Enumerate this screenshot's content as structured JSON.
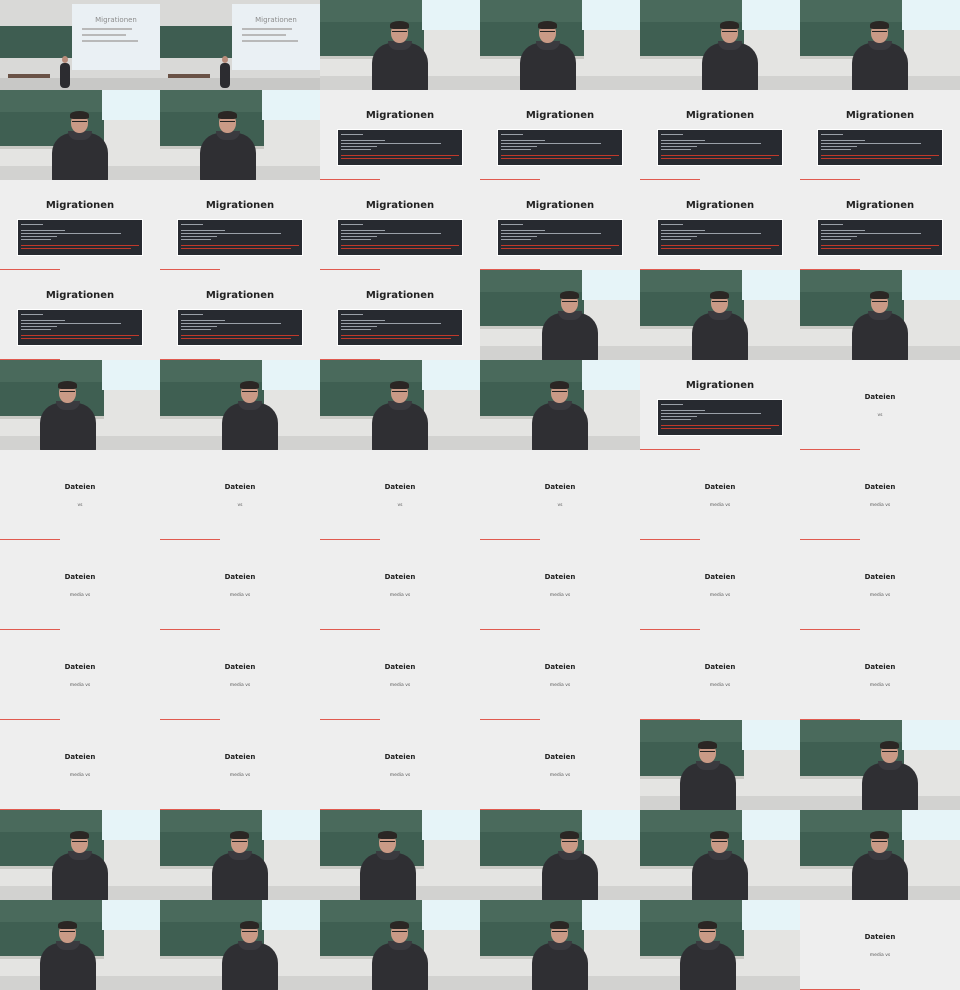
{
  "frames": [
    {
      "kind": "hall"
    },
    {
      "kind": "hall"
    },
    {
      "kind": "room"
    },
    {
      "kind": "room"
    },
    {
      "kind": "room"
    },
    {
      "kind": "room"
    },
    {
      "kind": "room"
    },
    {
      "kind": "room"
    },
    {
      "kind": "migrationen"
    },
    {
      "kind": "migrationen"
    },
    {
      "kind": "migrationen"
    },
    {
      "kind": "migrationen"
    },
    {
      "kind": "migrationen"
    },
    {
      "kind": "migrationen"
    },
    {
      "kind": "migrationen"
    },
    {
      "kind": "migrationen"
    },
    {
      "kind": "migrationen"
    },
    {
      "kind": "migrationen"
    },
    {
      "kind": "migrationen"
    },
    {
      "kind": "migrationen"
    },
    {
      "kind": "migrationen"
    },
    {
      "kind": "room"
    },
    {
      "kind": "room"
    },
    {
      "kind": "room"
    },
    {
      "kind": "room"
    },
    {
      "kind": "room"
    },
    {
      "kind": "room"
    },
    {
      "kind": "room"
    },
    {
      "kind": "migrationen"
    },
    {
      "kind": "dateien"
    },
    {
      "kind": "dateien"
    },
    {
      "kind": "dateien"
    },
    {
      "kind": "dateien"
    },
    {
      "kind": "dateien"
    },
    {
      "kind": "dateien"
    },
    {
      "kind": "dateien"
    },
    {
      "kind": "dateien"
    },
    {
      "kind": "dateien"
    },
    {
      "kind": "dateien"
    },
    {
      "kind": "dateien"
    },
    {
      "kind": "dateien"
    },
    {
      "kind": "dateien"
    },
    {
      "kind": "dateien"
    },
    {
      "kind": "dateien"
    },
    {
      "kind": "dateien"
    },
    {
      "kind": "dateien"
    },
    {
      "kind": "dateien"
    },
    {
      "kind": "dateien"
    },
    {
      "kind": "dateien"
    },
    {
      "kind": "dateien"
    },
    {
      "kind": "dateien"
    },
    {
      "kind": "dateien"
    },
    {
      "kind": "room"
    },
    {
      "kind": "room"
    },
    {
      "kind": "room"
    },
    {
      "kind": "room"
    },
    {
      "kind": "room"
    },
    {
      "kind": "room"
    },
    {
      "kind": "room"
    },
    {
      "kind": "room"
    },
    {
      "kind": "room"
    },
    {
      "kind": "room"
    },
    {
      "kind": "room"
    },
    {
      "kind": "room"
    },
    {
      "kind": "room"
    },
    {
      "kind": "dateien"
    }
  ],
  "dateien_subtitles": [
    "vs",
    "vs",
    "vs",
    "vs",
    "vs",
    "media vs",
    "media vs",
    "media vs",
    "media vs",
    "media vs",
    "media vs",
    "media vs",
    "media vs",
    "media vs",
    "media vs",
    "media vs",
    "media vs",
    "media vs",
    "media vs",
    "media vs",
    "media vs",
    "media vs",
    "media vs",
    "media vs"
  ],
  "slides": {
    "migrationen_title": "Migrationen",
    "dateien_title": "Dateien",
    "hall_projection_title": "Migrationen"
  },
  "colors": {
    "board": "#3f5f52",
    "slide_bg": "#eeeeee",
    "code_bg": "#272a30",
    "accent": "#e05a4f"
  }
}
